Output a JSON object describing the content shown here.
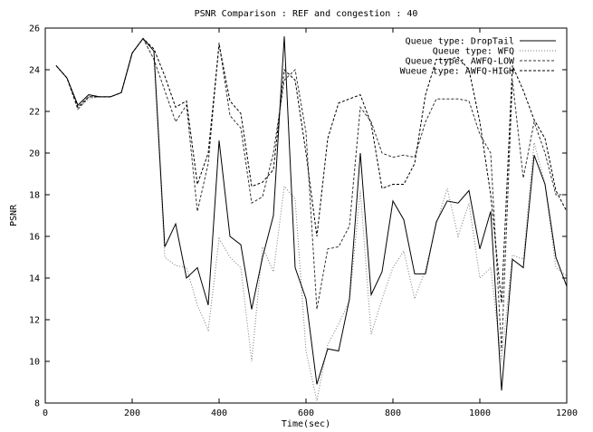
{
  "chart_data": {
    "type": "line",
    "title": "PSNR Comparison : REF and congestion : 40",
    "xlabel": "Time(sec)",
    "ylabel": "PSNR",
    "xlim": [
      0,
      1200
    ],
    "ylim": [
      8,
      26
    ],
    "xticks": [
      "0",
      "200",
      "400",
      "600",
      "800",
      "1000",
      "1200"
    ],
    "yticks": [
      "8",
      "10",
      "12",
      "14",
      "16",
      "18",
      "20",
      "22",
      "24",
      "26"
    ],
    "grid": false,
    "legend_position": "top-right",
    "x": [
      25,
      50,
      75,
      100,
      125,
      150,
      175,
      200,
      225,
      250,
      275,
      300,
      325,
      350,
      375,
      400,
      425,
      450,
      475,
      500,
      525,
      550,
      575,
      600,
      625,
      650,
      675,
      700,
      725,
      750,
      775,
      800,
      825,
      850,
      875,
      900,
      925,
      950,
      975,
      1000,
      1025,
      1050,
      1075,
      1100,
      1125,
      1150,
      1175,
      1200
    ],
    "series": [
      {
        "name": "Queue type: DropTail",
        "style": "solid",
        "color": "#000000",
        "values": [
          24.2,
          23.6,
          22.3,
          22.8,
          22.7,
          22.7,
          22.9,
          24.8,
          25.5,
          24.9,
          15.5,
          16.6,
          14.0,
          14.5,
          12.7,
          20.6,
          16.0,
          15.6,
          12.5,
          15.0,
          17.0,
          25.6,
          14.5,
          13.0,
          8.9,
          10.6,
          10.5,
          13.0,
          20.0,
          13.2,
          14.3,
          17.7,
          16.8,
          14.2,
          14.2,
          16.7,
          17.7,
          17.6,
          18.2,
          15.4,
          17.2,
          8.6,
          14.9,
          14.5,
          19.9,
          18.5,
          15.0,
          13.6
        ]
      },
      {
        "name": "Queue type: WFQ",
        "style": "dotted",
        "color": "#7a7a7a",
        "values": [
          24.2,
          23.6,
          22.1,
          22.6,
          22.7,
          22.7,
          22.9,
          24.8,
          25.5,
          24.5,
          15.0,
          14.6,
          14.5,
          12.7,
          11.5,
          15.9,
          15.0,
          14.5,
          10.0,
          15.5,
          14.3,
          18.4,
          17.8,
          10.5,
          8.1,
          10.8,
          11.8,
          12.9,
          18.2,
          11.3,
          13.0,
          14.5,
          15.3,
          13.0,
          14.4,
          16.6,
          18.3,
          16.0,
          17.6,
          14.0,
          14.5,
          10.0,
          15.1,
          14.9,
          20.5,
          18.5,
          14.5,
          14.1
        ]
      },
      {
        "name": "Queue type: AWFQ-LOW",
        "style": "dashed",
        "color": "#333333",
        "values": [
          24.2,
          23.6,
          22.1,
          22.7,
          22.7,
          22.7,
          22.9,
          24.8,
          25.5,
          24.5,
          23.0,
          21.5,
          22.3,
          17.2,
          19.5,
          25.3,
          21.8,
          21.2,
          17.6,
          17.9,
          20.0,
          23.5,
          24.0,
          21.0,
          12.5,
          15.4,
          15.5,
          16.5,
          22.2,
          21.5,
          20.0,
          19.8,
          19.9,
          19.8,
          21.5,
          22.6,
          22.6,
          22.6,
          22.5,
          20.9,
          20.0,
          10.5,
          23.5,
          18.8,
          21.5,
          20.0,
          18.0,
          18.0
        ]
      },
      {
        "name": "Wueue type: AWFQ-HIGH",
        "style": "dashed",
        "color": "#000000",
        "values": [
          24.2,
          23.6,
          22.2,
          22.7,
          22.7,
          22.7,
          22.9,
          24.8,
          25.5,
          25.0,
          23.7,
          22.2,
          22.5,
          18.5,
          20.0,
          25.2,
          22.5,
          21.9,
          18.4,
          18.6,
          19.2,
          24.0,
          23.5,
          20.0,
          16.0,
          20.7,
          22.4,
          22.6,
          22.8,
          21.4,
          18.3,
          18.5,
          18.5,
          19.5,
          22.8,
          24.5,
          24.5,
          24.6,
          24.0,
          21.5,
          18.0,
          12.8,
          24.2,
          23.0,
          21.6,
          20.7,
          18.2,
          17.2
        ]
      }
    ]
  }
}
